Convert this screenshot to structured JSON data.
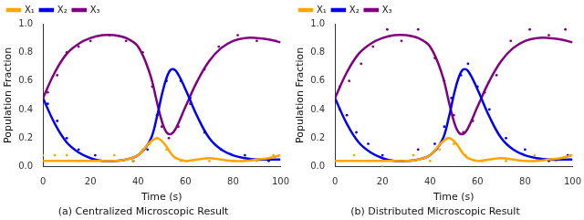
{
  "chart_data": [
    {
      "type": "line",
      "title": "(a) Centralized Microscopic Result",
      "x_label": "Time (s)",
      "y_label": "Population Fraction",
      "xlim": [
        0,
        100
      ],
      "xticks": [
        0,
        20,
        40,
        60,
        80,
        100
      ],
      "ylim": [
        0,
        1
      ],
      "yticks": [
        {
          "value": 0,
          "label": "0.0"
        },
        0.2,
        0.4,
        0.6,
        0.8,
        {
          "value": 1,
          "label": "1.0"
        }
      ],
      "legend": "top",
      "grid": false,
      "x": [
        0,
        5,
        10,
        15,
        20,
        25,
        30,
        35,
        40,
        45,
        48,
        50,
        52,
        54,
        56,
        60,
        65,
        70,
        75,
        80,
        85,
        90,
        95,
        100
      ],
      "series": [
        {
          "name": "X₁",
          "color": "#ffa500",
          "values": [
            0.04,
            0.04,
            0.04,
            0.04,
            0.04,
            0.04,
            0.04,
            0.05,
            0.08,
            0.17,
            0.2,
            0.18,
            0.14,
            0.09,
            0.06,
            0.04,
            0.05,
            0.06,
            0.05,
            0.04,
            0.04,
            0.05,
            0.06,
            0.08
          ],
          "points": [
            [
              0,
              0.08
            ],
            [
              5,
              0.08
            ],
            [
              10,
              0.08
            ],
            [
              15,
              0.04
            ],
            [
              25,
              0.04
            ],
            [
              30,
              0.08
            ],
            [
              38,
              0.04
            ],
            [
              42,
              0.12
            ],
            [
              45,
              0.16
            ],
            [
              48,
              0.2
            ],
            [
              52,
              0.12
            ],
            [
              58,
              0.04
            ],
            [
              70,
              0.04
            ],
            [
              80,
              0.04
            ],
            [
              90,
              0.04
            ],
            [
              97,
              0.08
            ]
          ]
        },
        {
          "name": "X₂",
          "color": "#0000ee",
          "values": [
            0.48,
            0.3,
            0.17,
            0.1,
            0.06,
            0.04,
            0.04,
            0.05,
            0.08,
            0.18,
            0.35,
            0.5,
            0.62,
            0.68,
            0.67,
            0.54,
            0.35,
            0.2,
            0.12,
            0.08,
            0.06,
            0.05,
            0.05,
            0.05
          ],
          "points": [
            [
              2,
              0.44
            ],
            [
              6,
              0.32
            ],
            [
              10,
              0.2
            ],
            [
              15,
              0.12
            ],
            [
              22,
              0.08
            ],
            [
              30,
              0.04
            ],
            [
              38,
              0.04
            ],
            [
              44,
              0.12
            ],
            [
              48,
              0.36
            ],
            [
              52,
              0.6
            ],
            [
              55,
              0.68
            ],
            [
              58,
              0.6
            ],
            [
              62,
              0.48
            ],
            [
              68,
              0.24
            ],
            [
              75,
              0.12
            ],
            [
              85,
              0.08
            ],
            [
              95,
              0.04
            ]
          ]
        },
        {
          "name": "X₃",
          "color": "#800080",
          "values": [
            0.48,
            0.66,
            0.79,
            0.86,
            0.9,
            0.92,
            0.92,
            0.9,
            0.84,
            0.65,
            0.45,
            0.32,
            0.24,
            0.23,
            0.27,
            0.42,
            0.6,
            0.74,
            0.83,
            0.88,
            0.9,
            0.9,
            0.89,
            0.87
          ],
          "points": [
            [
              2,
              0.52
            ],
            [
              6,
              0.64
            ],
            [
              10,
              0.8
            ],
            [
              15,
              0.84
            ],
            [
              20,
              0.88
            ],
            [
              28,
              0.92
            ],
            [
              35,
              0.88
            ],
            [
              42,
              0.8
            ],
            [
              46,
              0.56
            ],
            [
              50,
              0.28
            ],
            [
              53,
              0.2
            ],
            [
              57,
              0.28
            ],
            [
              62,
              0.44
            ],
            [
              68,
              0.68
            ],
            [
              74,
              0.84
            ],
            [
              82,
              0.92
            ],
            [
              90,
              0.88
            ],
            [
              98,
              0.88
            ]
          ]
        }
      ]
    },
    {
      "type": "line",
      "title": "(b) Distributed Microscopic Result",
      "x_label": "Time (s)",
      "y_label": "Population Fraction",
      "xlim": [
        0,
        100
      ],
      "xticks": [
        0,
        20,
        40,
        60,
        80,
        100
      ],
      "ylim": [
        0,
        1
      ],
      "yticks": [
        {
          "value": 0,
          "label": "0.0"
        },
        0.2,
        0.4,
        0.6,
        0.8,
        {
          "value": 1,
          "label": "1.0"
        }
      ],
      "legend": "top",
      "grid": false,
      "x": [
        0,
        5,
        10,
        15,
        20,
        25,
        30,
        35,
        40,
        45,
        48,
        50,
        52,
        54,
        56,
        60,
        65,
        70,
        75,
        80,
        85,
        90,
        95,
        100
      ],
      "series": [
        {
          "name": "X₁",
          "color": "#ffa500",
          "values": [
            0.04,
            0.04,
            0.04,
            0.04,
            0.04,
            0.04,
            0.04,
            0.05,
            0.08,
            0.17,
            0.2,
            0.18,
            0.14,
            0.09,
            0.06,
            0.04,
            0.05,
            0.06,
            0.05,
            0.04,
            0.04,
            0.05,
            0.06,
            0.08
          ],
          "points": [
            [
              3,
              0.04
            ],
            [
              8,
              0.08
            ],
            [
              14,
              0.04
            ],
            [
              20,
              0.0
            ],
            [
              26,
              0.04
            ],
            [
              33,
              0.08
            ],
            [
              40,
              0.04
            ],
            [
              44,
              0.12
            ],
            [
              47,
              0.2
            ],
            [
              50,
              0.16
            ],
            [
              55,
              0.08
            ],
            [
              62,
              0.04
            ],
            [
              72,
              0.04
            ],
            [
              84,
              0.08
            ],
            [
              93,
              0.04
            ],
            [
              99,
              0.08
            ]
          ]
        },
        {
          "name": "X₂",
          "color": "#0000ee",
          "values": [
            0.48,
            0.3,
            0.17,
            0.1,
            0.06,
            0.04,
            0.04,
            0.05,
            0.08,
            0.18,
            0.35,
            0.5,
            0.62,
            0.68,
            0.67,
            0.54,
            0.35,
            0.2,
            0.12,
            0.08,
            0.06,
            0.05,
            0.05,
            0.05
          ],
          "points": [
            [
              2,
              0.4
            ],
            [
              5,
              0.36
            ],
            [
              9,
              0.24
            ],
            [
              14,
              0.16
            ],
            [
              20,
              0.08
            ],
            [
              28,
              0.04
            ],
            [
              35,
              0.12
            ],
            [
              42,
              0.16
            ],
            [
              46,
              0.28
            ],
            [
              49,
              0.48
            ],
            [
              53,
              0.64
            ],
            [
              56,
              0.72
            ],
            [
              60,
              0.56
            ],
            [
              65,
              0.4
            ],
            [
              72,
              0.2
            ],
            [
              80,
              0.12
            ],
            [
              90,
              0.04
            ],
            [
              98,
              0.08
            ]
          ]
        },
        {
          "name": "X₃",
          "color": "#800080",
          "values": [
            0.48,
            0.66,
            0.79,
            0.86,
            0.9,
            0.92,
            0.92,
            0.9,
            0.84,
            0.65,
            0.45,
            0.32,
            0.24,
            0.23,
            0.27,
            0.42,
            0.6,
            0.74,
            0.83,
            0.88,
            0.9,
            0.9,
            0.89,
            0.87
          ],
          "points": [
            [
              2,
              0.56
            ],
            [
              6,
              0.6
            ],
            [
              11,
              0.72
            ],
            [
              16,
              0.84
            ],
            [
              22,
              0.96
            ],
            [
              28,
              0.88
            ],
            [
              35,
              0.96
            ],
            [
              42,
              0.76
            ],
            [
              46,
              0.6
            ],
            [
              50,
              0.36
            ],
            [
              54,
              0.24
            ],
            [
              58,
              0.32
            ],
            [
              63,
              0.52
            ],
            [
              68,
              0.64
            ],
            [
              74,
              0.88
            ],
            [
              82,
              0.96
            ],
            [
              90,
              0.92
            ],
            [
              97,
              0.96
            ]
          ]
        }
      ]
    }
  ]
}
